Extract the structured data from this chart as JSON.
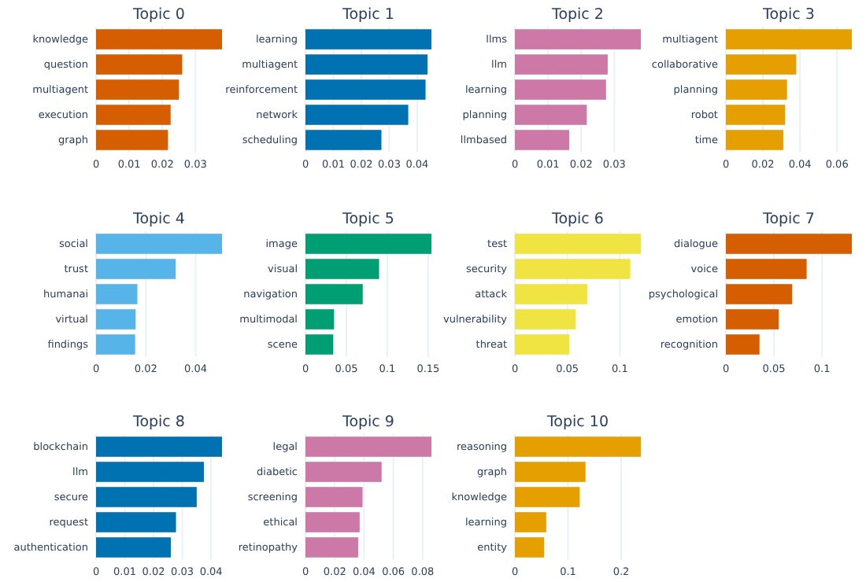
{
  "chart_data": [
    {
      "type": "bar",
      "orientation": "horizontal",
      "title": "Topic 0",
      "categories": [
        "knowledge",
        "question",
        "multiagent",
        "execution",
        "graph"
      ],
      "values": [
        0.038,
        0.026,
        0.025,
        0.0225,
        0.0217
      ],
      "color": "#d55e00",
      "xlim": [
        0,
        0.038
      ],
      "xticks": [
        0,
        0.01,
        0.02,
        0.03
      ],
      "grid": "x"
    },
    {
      "type": "bar",
      "orientation": "horizontal",
      "title": "Topic 1",
      "categories": [
        "learning",
        "multiagent",
        "reinforcement",
        "network",
        "scheduling"
      ],
      "values": [
        0.0451,
        0.0437,
        0.043,
        0.0368,
        0.0272
      ],
      "color": "#0072b2",
      "xlim": [
        0,
        0.0451
      ],
      "xticks": [
        0,
        0.01,
        0.02,
        0.03,
        0.04
      ],
      "grid": "x"
    },
    {
      "type": "bar",
      "orientation": "horizontal",
      "title": "Topic 2",
      "categories": [
        "llms",
        "llm",
        "learning",
        "planning",
        "llmbased"
      ],
      "values": [
        0.038,
        0.028,
        0.0275,
        0.0217,
        0.0164
      ],
      "color": "#cc79a7",
      "xlim": [
        0,
        0.038
      ],
      "xticks": [
        0,
        0.01,
        0.02,
        0.03
      ],
      "grid": "x"
    },
    {
      "type": "bar",
      "orientation": "horizontal",
      "title": "Topic 3",
      "categories": [
        "multiagent",
        "collaborative",
        "planning",
        "robot",
        "time"
      ],
      "values": [
        0.068,
        0.038,
        0.033,
        0.032,
        0.031
      ],
      "color": "#e69f00",
      "xlim": [
        0,
        0.068
      ],
      "xticks": [
        0,
        0.02,
        0.04,
        0.06
      ],
      "grid": "x"
    },
    {
      "type": "bar",
      "orientation": "horizontal",
      "title": "Topic 4",
      "categories": [
        "social",
        "trust",
        "humanai",
        "virtual",
        "findings"
      ],
      "values": [
        0.0506,
        0.032,
        0.0166,
        0.0159,
        0.0157
      ],
      "color": "#56b4e9",
      "xlim": [
        0,
        0.0506
      ],
      "xticks": [
        0,
        0.02,
        0.04
      ],
      "grid": "x"
    },
    {
      "type": "bar",
      "orientation": "horizontal",
      "title": "Topic 5",
      "categories": [
        "image",
        "visual",
        "navigation",
        "multimodal",
        "scene"
      ],
      "values": [
        0.154,
        0.09,
        0.07,
        0.035,
        0.034
      ],
      "color": "#009e73",
      "xlim": [
        0,
        0.154
      ],
      "xticks": [
        0,
        0.05,
        0.1,
        0.15
      ],
      "grid": "x"
    },
    {
      "type": "bar",
      "orientation": "horizontal",
      "title": "Topic 6",
      "categories": [
        "test",
        "security",
        "attack",
        "vulnerability",
        "threat"
      ],
      "values": [
        0.12,
        0.11,
        0.069,
        0.058,
        0.052
      ],
      "color": "#f0e442",
      "xlim": [
        0,
        0.12
      ],
      "xticks": [
        0,
        0.05,
        0.1
      ],
      "grid": "x"
    },
    {
      "type": "bar",
      "orientation": "horizontal",
      "title": "Topic 7",
      "categories": [
        "dialogue",
        "voice",
        "psychological",
        "emotion",
        "recognition"
      ],
      "values": [
        0.131,
        0.084,
        0.069,
        0.055,
        0.035
      ],
      "color": "#d55e00",
      "xlim": [
        0,
        0.131
      ],
      "xticks": [
        0,
        0.05,
        0.1
      ],
      "grid": "x"
    },
    {
      "type": "bar",
      "orientation": "horizontal",
      "title": "Topic 8",
      "categories": [
        "blockchain",
        "llm",
        "secure",
        "request",
        "authentication"
      ],
      "values": [
        0.0438,
        0.0375,
        0.035,
        0.0278,
        0.026
      ],
      "color": "#0072b2",
      "xlim": [
        0,
        0.0438
      ],
      "xticks": [
        0,
        0.01,
        0.02,
        0.03,
        0.04
      ],
      "grid": "x"
    },
    {
      "type": "bar",
      "orientation": "horizontal",
      "title": "Topic 9",
      "categories": [
        "legal",
        "diabetic",
        "screening",
        "ethical",
        "retinopathy"
      ],
      "values": [
        0.086,
        0.052,
        0.039,
        0.037,
        0.036
      ],
      "color": "#cc79a7",
      "xlim": [
        0,
        0.086
      ],
      "xticks": [
        0,
        0.02,
        0.04,
        0.06,
        0.08
      ],
      "grid": "x"
    },
    {
      "type": "bar",
      "orientation": "horizontal",
      "title": "Topic 10",
      "categories": [
        "reasoning",
        "graph",
        "knowledge",
        "learning",
        "entity"
      ],
      "values": [
        0.237,
        0.133,
        0.122,
        0.059,
        0.055
      ],
      "color": "#e69f00",
      "xlim": [
        0,
        0.237
      ],
      "xticks": [
        0,
        0.1,
        0.2
      ],
      "grid": "x"
    }
  ]
}
